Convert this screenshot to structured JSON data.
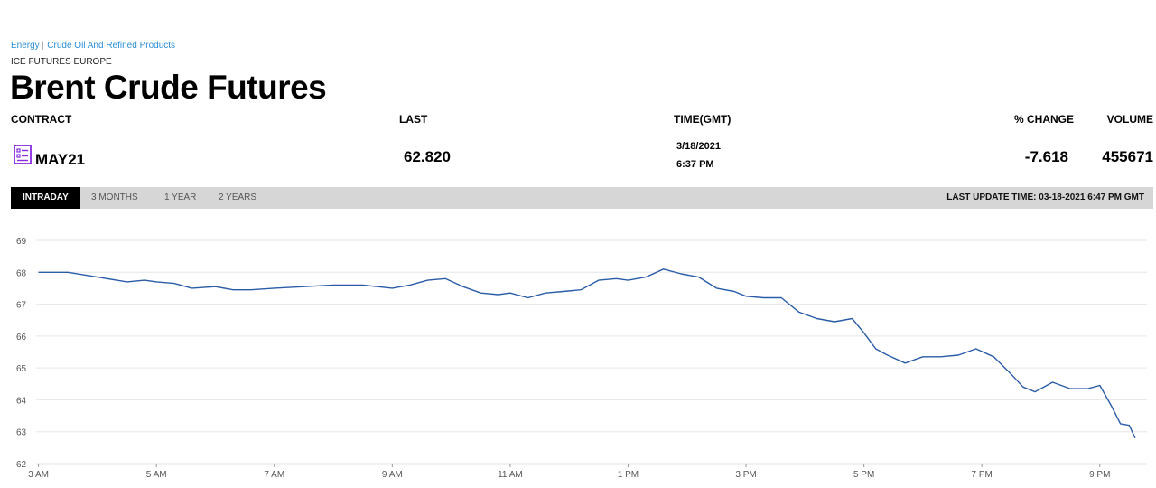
{
  "breadcrumb": {
    "item1": "Energy",
    "separator": "|",
    "item2": "Crude Oil And Refined Products"
  },
  "exchange": "ICE FUTURES EUROPE",
  "title": "Brent Crude Futures",
  "table": {
    "headers": {
      "contract": "CONTRACT",
      "last": "LAST",
      "time": "TIME(GMT)",
      "change": "% CHANGE",
      "volume": "VOLUME"
    },
    "row": {
      "contract": "MAY21",
      "last": "62.820",
      "date": "3/18/2021",
      "time": "6:37 PM",
      "change": "-7.618",
      "volume": "455671"
    }
  },
  "tabs": [
    "INTRADAY",
    "3 MONTHS",
    "1 YEAR",
    "2 YEARS"
  ],
  "active_tab": "INTRADAY",
  "last_update": "LAST UPDATE TIME: 03-18-2021 6:47 PM GMT",
  "colors": {
    "line": "#2a5ca8",
    "grid": "#e6e6e6",
    "tabbar": "#d6d6d6",
    "active_tab": "#000000",
    "icon": "#8a2be2",
    "breadcrumb_link": "#2b8ed6"
  },
  "icons": {
    "contract": "spec-sheet-icon"
  },
  "chart_data": {
    "type": "line",
    "title": "",
    "xlabel": "",
    "ylabel": "",
    "ylim": [
      62,
      69
    ],
    "xlim_hours": [
      2.96,
      21.8
    ],
    "grid": "horizontal",
    "legend": "none",
    "x_ticks": [
      {
        "hour": 3,
        "label": "3 AM"
      },
      {
        "hour": 5,
        "label": "5 AM"
      },
      {
        "hour": 7,
        "label": "7 AM"
      },
      {
        "hour": 9,
        "label": "9 AM"
      },
      {
        "hour": 11,
        "label": "11 AM"
      },
      {
        "hour": 13,
        "label": "1 PM"
      },
      {
        "hour": 15,
        "label": "3 PM"
      },
      {
        "hour": 17,
        "label": "5 PM"
      },
      {
        "hour": 19,
        "label": "7 PM"
      },
      {
        "hour": 21,
        "label": "9 PM"
      }
    ],
    "y_ticks": [
      69,
      68,
      67,
      66,
      65,
      64,
      63,
      62
    ],
    "series": [
      {
        "x_hours": [
          3.0,
          3.2,
          3.5,
          4.0,
          4.5,
          4.8,
          5.0,
          5.3,
          5.6,
          6.0,
          6.3,
          6.6,
          7.0,
          7.5,
          8.0,
          8.5,
          9.0,
          9.3,
          9.6,
          9.9,
          10.2,
          10.5,
          10.8,
          11.0,
          11.3,
          11.6,
          11.9,
          12.2,
          12.5,
          12.8,
          13.0,
          13.3,
          13.6,
          13.9,
          14.2,
          14.5,
          14.8,
          15.0,
          15.3,
          15.6,
          15.9,
          16.2,
          16.5,
          16.8,
          17.0,
          17.2,
          17.4,
          17.7,
          18.0,
          18.3,
          18.6,
          18.9,
          19.2,
          19.5,
          19.7,
          19.9,
          20.2,
          20.5,
          20.8,
          21.0,
          21.2,
          21.35,
          21.5,
          21.6
        ],
        "values": [
          68.0,
          68.0,
          68.0,
          67.85,
          67.7,
          67.75,
          67.7,
          67.65,
          67.5,
          67.55,
          67.45,
          67.45,
          67.5,
          67.55,
          67.6,
          67.6,
          67.5,
          67.6,
          67.75,
          67.8,
          67.55,
          67.35,
          67.3,
          67.35,
          67.2,
          67.35,
          67.4,
          67.45,
          67.75,
          67.8,
          67.75,
          67.85,
          68.1,
          67.95,
          67.85,
          67.5,
          67.4,
          67.25,
          67.2,
          67.2,
          66.75,
          66.55,
          66.45,
          66.55,
          66.1,
          65.6,
          65.4,
          65.15,
          65.35,
          65.35,
          65.4,
          65.6,
          65.35,
          64.8,
          64.4,
          64.25,
          64.55,
          64.35,
          64.35,
          64.45,
          63.8,
          63.25,
          63.2,
          62.8
        ]
      }
    ]
  }
}
